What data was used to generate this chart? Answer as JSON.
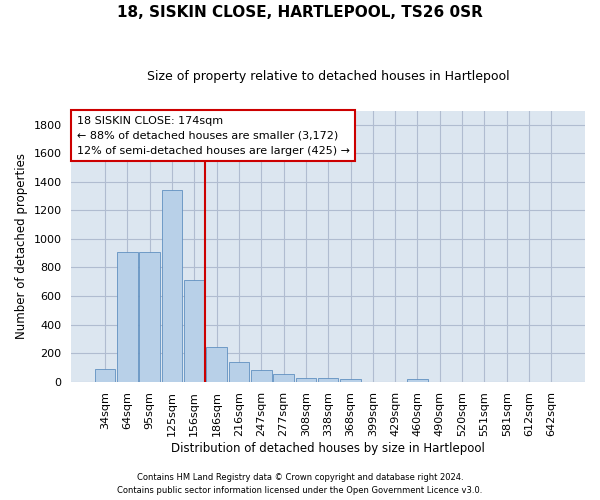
{
  "title": "18, SISKIN CLOSE, HARTLEPOOL, TS26 0SR",
  "subtitle": "Size of property relative to detached houses in Hartlepool",
  "xlabel": "Distribution of detached houses by size in Hartlepool",
  "ylabel": "Number of detached properties",
  "bar_labels": [
    "34sqm",
    "64sqm",
    "95sqm",
    "125sqm",
    "156sqm",
    "186sqm",
    "216sqm",
    "247sqm",
    "277sqm",
    "308sqm",
    "338sqm",
    "368sqm",
    "399sqm",
    "429sqm",
    "460sqm",
    "490sqm",
    "520sqm",
    "551sqm",
    "581sqm",
    "612sqm",
    "642sqm"
  ],
  "bar_values": [
    85,
    910,
    910,
    1345,
    710,
    245,
    140,
    80,
    50,
    25,
    25,
    15,
    0,
    0,
    20,
    0,
    0,
    0,
    0,
    0,
    0
  ],
  "bar_color": "#b8d0e8",
  "bar_edge_color": "#6090c0",
  "vline_x_index": 5,
  "vline_color": "#cc0000",
  "annotation_title": "18 SISKIN CLOSE: 174sqm",
  "annotation_line1": "← 88% of detached houses are smaller (3,172)",
  "annotation_line2": "12% of semi-detached houses are larger (425) →",
  "annotation_box_color": "#cc0000",
  "ylim": [
    0,
    1900
  ],
  "yticks": [
    0,
    200,
    400,
    600,
    800,
    1000,
    1200,
    1400,
    1600,
    1800
  ],
  "footer_line1": "Contains HM Land Registry data © Crown copyright and database right 2024.",
  "footer_line2": "Contains public sector information licensed under the Open Government Licence v3.0.",
  "background_color": "#ffffff",
  "plot_bg_color": "#dce6f0",
  "grid_color": "#b0bcd0",
  "title_fontsize": 11,
  "subtitle_fontsize": 9,
  "axis_label_fontsize": 8.5,
  "tick_fontsize": 8,
  "annotation_fontsize": 8,
  "footer_fontsize": 6
}
